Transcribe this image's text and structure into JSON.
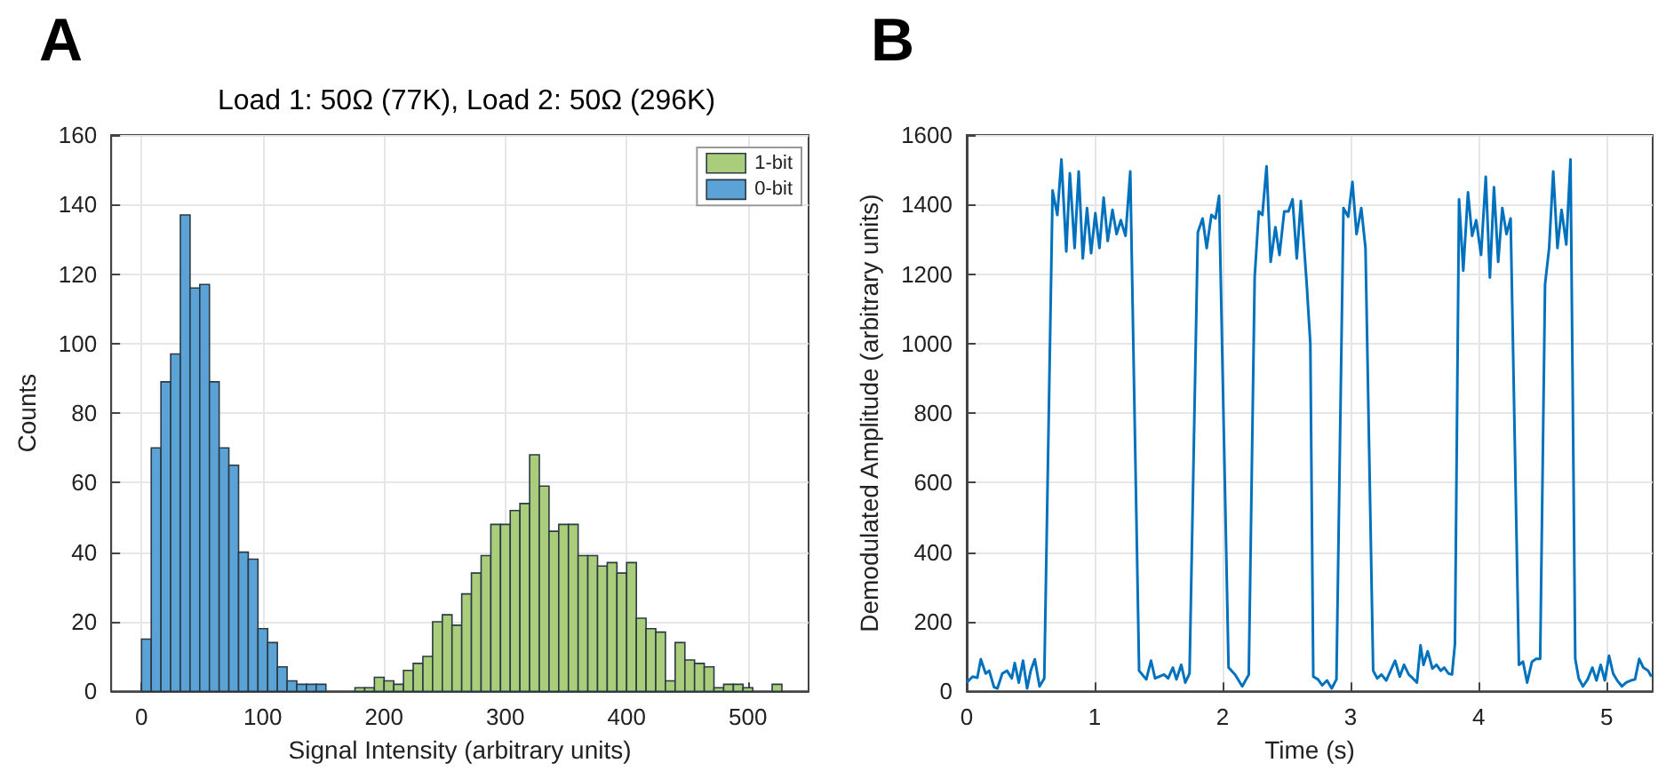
{
  "chart_data": [
    {
      "type": "histogram",
      "title": "Load 1: 50Ω (77K), Load 2: 50Ω (296K)",
      "xlabel": "Signal Intensity (arbitrary units)",
      "ylabel": "Counts",
      "annotations": [
        "A"
      ],
      "bins": [
        0,
        8,
        16,
        24,
        32,
        40,
        48,
        56,
        64,
        72,
        80,
        88,
        96,
        104,
        112,
        120,
        128,
        136,
        144,
        152,
        160,
        168,
        176,
        184,
        192,
        200,
        208,
        216,
        224,
        232,
        240,
        248,
        256,
        264,
        272,
        280,
        288,
        296,
        304,
        312,
        320,
        328,
        336,
        344,
        352,
        360,
        368,
        376,
        384,
        392,
        400,
        408,
        416,
        424,
        432,
        440,
        448,
        456,
        464,
        472,
        480,
        488,
        496,
        504,
        512,
        520,
        528
      ],
      "series": [
        {
          "name": "1-bit",
          "color": "#a9cd7a",
          "values": [
            0,
            0,
            0,
            0,
            0,
            0,
            0,
            0,
            0,
            0,
            0,
            0,
            0,
            0,
            0,
            0,
            0,
            0,
            0,
            0,
            0,
            0,
            1,
            1,
            4,
            3,
            2,
            6,
            8,
            10,
            20,
            22,
            19,
            28,
            34,
            39,
            48,
            48,
            52,
            54,
            68,
            59,
            46,
            48,
            48,
            39,
            39,
            36,
            37,
            34,
            37,
            21,
            18,
            17,
            3,
            14,
            9,
            8,
            7,
            1,
            2,
            2,
            1,
            0,
            0,
            2
          ]
        },
        {
          "name": "0-bit",
          "color": "#5ba2d6",
          "values": [
            15,
            70,
            89,
            97,
            137,
            116,
            117,
            89,
            70,
            65,
            40,
            38,
            18,
            14,
            7,
            3,
            2,
            2,
            2,
            0,
            0,
            0,
            0,
            0,
            0,
            0,
            0,
            0,
            0,
            0,
            0,
            0,
            0,
            0,
            0,
            0,
            0,
            0,
            0,
            0,
            0,
            0,
            0,
            0,
            0,
            0,
            0,
            0,
            0,
            0,
            0,
            0,
            0,
            0,
            0,
            0,
            0,
            0,
            0,
            0,
            0,
            0,
            0,
            0,
            0,
            0
          ]
        }
      ],
      "xlim": [
        -25,
        550
      ],
      "xticks": [
        0,
        100,
        200,
        300,
        400,
        500
      ],
      "ylim": [
        0,
        160
      ],
      "yticks": [
        0,
        20,
        40,
        60,
        80,
        100,
        120,
        140,
        160
      ],
      "grid": true,
      "legend": "top right"
    },
    {
      "type": "line",
      "xlabel": "Time (s)",
      "ylabel": "Demodulated Amplitude (arbitrary units)",
      "annotations": [
        "B"
      ],
      "x": [
        0.0,
        0.046,
        0.083,
        0.11,
        0.148,
        0.176,
        0.213,
        0.24,
        0.278,
        0.315,
        0.352,
        0.375,
        0.407,
        0.44,
        0.472,
        0.5,
        0.532,
        0.569,
        0.606,
        0.671,
        0.708,
        0.74,
        0.778,
        0.806,
        0.843,
        0.875,
        0.907,
        0.94,
        0.972,
        1.005,
        1.037,
        1.07,
        1.102,
        1.139,
        1.171,
        1.204,
        1.241,
        1.278,
        1.347,
        1.403,
        1.44,
        1.472,
        1.542,
        1.574,
        1.611,
        1.639,
        1.676,
        1.708,
        1.741,
        1.806,
        1.843,
        1.875,
        1.912,
        1.944,
        1.972,
        2.046,
        2.097,
        2.153,
        2.204,
        2.25,
        2.282,
        2.31,
        2.343,
        2.375,
        2.412,
        2.444,
        2.481,
        2.514,
        2.546,
        2.579,
        2.611,
        2.657,
        2.685,
        2.708,
        2.745,
        2.778,
        2.815,
        2.852,
        2.889,
        2.944,
        2.981,
        3.014,
        3.046,
        3.083,
        3.116,
        3.176,
        3.208,
        3.241,
        3.278,
        3.347,
        3.384,
        3.417,
        3.454,
        3.486,
        3.518,
        3.546,
        3.569,
        3.602,
        3.639,
        3.671,
        3.704,
        3.731,
        3.764,
        3.792,
        3.815,
        3.847,
        3.88,
        3.917,
        3.949,
        3.981,
        4.019,
        4.056,
        4.088,
        4.12,
        4.153,
        4.185,
        4.218,
        4.25,
        4.315,
        4.347,
        4.379,
        4.417,
        4.449,
        4.481,
        4.519,
        4.551,
        4.583,
        4.616,
        4.648,
        4.685,
        4.718,
        4.755,
        4.782,
        4.815,
        4.852,
        4.889,
        4.921,
        4.954,
        4.986,
        5.019,
        5.051,
        5.083,
        5.12,
        5.153,
        5.19,
        5.222,
        5.255,
        5.287,
        5.324,
        5.35
      ],
      "series": [
        {
          "color": "#0072bd",
          "values": [
            25,
            42,
            39,
            92,
            51,
            59,
            12,
            8,
            51,
            59,
            37,
            81,
            25,
            88,
            8,
            59,
            92,
            14,
            37,
            1440,
            1370,
            1530,
            1265,
            1490,
            1275,
            1495,
            1245,
            1390,
            1260,
            1375,
            1275,
            1420,
            1295,
            1385,
            1315,
            1355,
            1310,
            1495,
            59,
            34,
            88,
            37,
            48,
            37,
            68,
            34,
            76,
            25,
            51,
            1320,
            1360,
            1275,
            1370,
            1360,
            1425,
            68,
            48,
            14,
            48,
            1190,
            1380,
            1370,
            1510,
            1235,
            1335,
            1255,
            1380,
            1380,
            1415,
            1245,
            1410,
            1170,
            1000,
            42,
            34,
            17,
            31,
            8,
            34,
            1390,
            1365,
            1465,
            1315,
            1390,
            1275,
            59,
            37,
            48,
            31,
            88,
            42,
            76,
            48,
            37,
            25,
            132,
            76,
            115,
            65,
            76,
            59,
            68,
            51,
            48,
            136,
            1415,
            1210,
            1435,
            1310,
            1355,
            1255,
            1480,
            1190,
            1450,
            1235,
            1390,
            1315,
            1360,
            76,
            85,
            25,
            85,
            93,
            93,
            1170,
            1275,
            1495,
            1275,
            1385,
            1285,
            1530,
            93,
            37,
            14,
            34,
            68,
            31,
            76,
            31,
            102,
            51,
            31,
            14,
            25,
            31,
            34,
            93,
            68,
            59,
            42
          ]
        }
      ],
      "xlim": [
        0,
        5.36
      ],
      "xticks": [
        0,
        1,
        2,
        3,
        4,
        5
      ],
      "ylim": [
        0,
        1600
      ],
      "yticks": [
        0,
        200,
        400,
        600,
        800,
        1000,
        1200,
        1400,
        1600
      ],
      "grid": true,
      "marker": "none",
      "line_style": "solid"
    }
  ]
}
